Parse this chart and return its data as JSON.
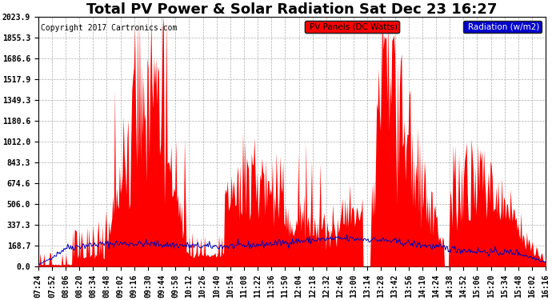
{
  "title": "Total PV Power & Solar Radiation Sat Dec 23 16:27",
  "copyright": "Copyright 2017 Cartronics.com",
  "legend_radiation": "Radiation (w/m2)",
  "legend_pv": "PV Panels (DC Watts)",
  "yticks": [
    0.0,
    168.7,
    337.3,
    506.0,
    674.6,
    843.3,
    1012.0,
    1180.6,
    1349.3,
    1517.9,
    1686.6,
    1855.3,
    2023.9
  ],
  "ymax": 2023.9,
  "ymin": 0.0,
  "xtick_labels": [
    "07:24",
    "07:52",
    "08:06",
    "08:20",
    "08:34",
    "08:48",
    "09:02",
    "09:16",
    "09:30",
    "09:44",
    "09:58",
    "10:12",
    "10:26",
    "10:40",
    "10:54",
    "11:08",
    "11:22",
    "11:36",
    "11:50",
    "12:04",
    "12:18",
    "12:32",
    "12:46",
    "13:00",
    "13:14",
    "13:28",
    "13:42",
    "13:56",
    "14:10",
    "14:24",
    "14:38",
    "14:52",
    "15:06",
    "15:20",
    "15:34",
    "15:48",
    "16:02",
    "16:16"
  ],
  "bg_color": "#ffffff",
  "plot_bg_color": "#ffffff",
  "grid_color": "#999999",
  "pv_fill_color": "#ff0000",
  "radiation_line_color": "#0000bb",
  "title_fontsize": 13,
  "tick_fontsize": 7,
  "legend_fontsize": 7.5,
  "copyright_fontsize": 7
}
